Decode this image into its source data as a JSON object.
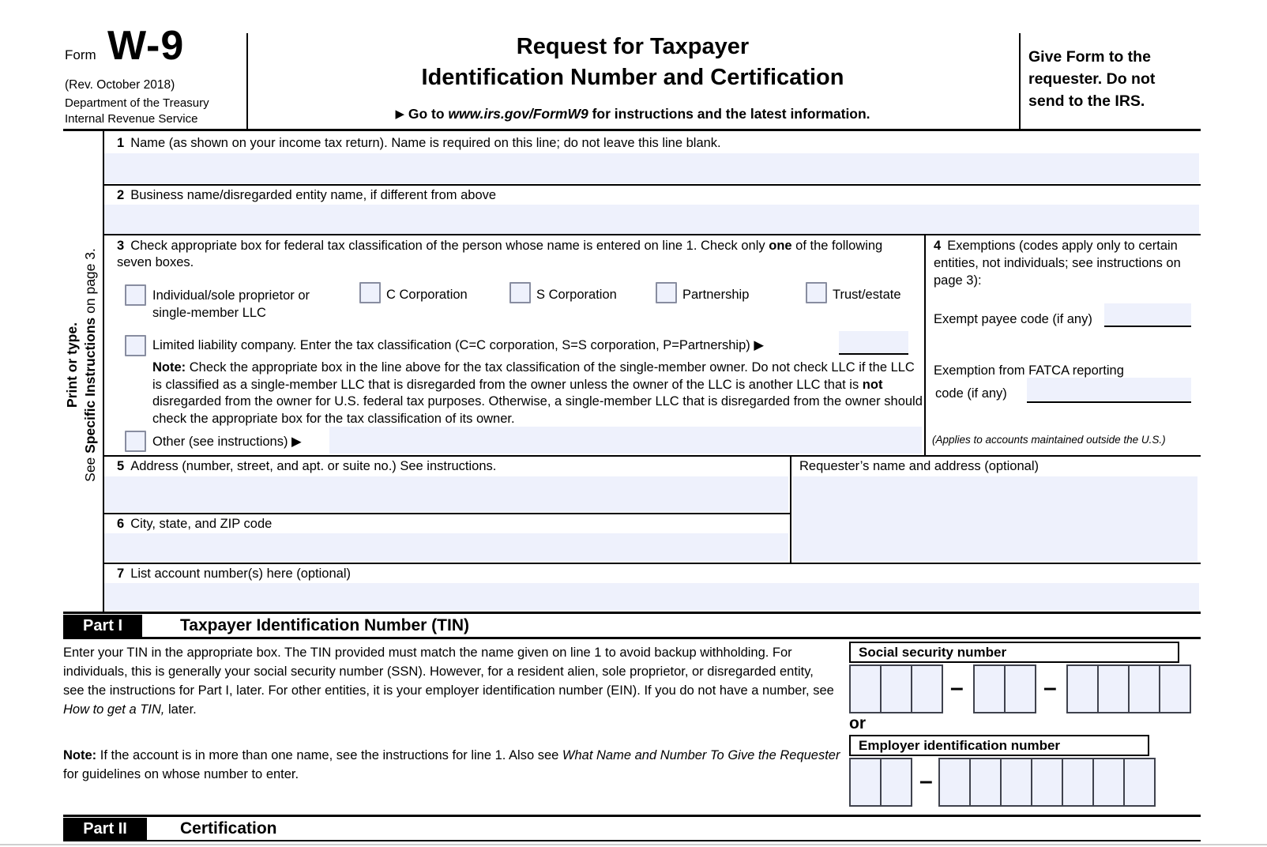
{
  "header": {
    "form_word": "Form",
    "form_number": "W-9",
    "revision": "(Rev. October 2018)",
    "department": "Department of the Treasury",
    "agency": "Internal Revenue Service",
    "title_line1": "Request for Taxpayer",
    "title_line2": "Identification Number and Certification",
    "goto_arrow": "▶",
    "goto_pre": "Go to ",
    "goto_url": "www.irs.gov/FormW9",
    "goto_post": " for instructions and the latest information.",
    "give_form": "Give Form to the requester. Do not send to the IRS."
  },
  "sidebar": {
    "line1": "Print or type.",
    "line2_pre": "See ",
    "line2_bold": "Specific Instructions",
    "line2_post": " on page 3."
  },
  "lines": {
    "l1_num": "1",
    "l1_label": "Name (as shown on your income tax return). Name is required on this line; do not leave this line blank.",
    "l2_num": "2",
    "l2_label": "Business name/disregarded entity name, if different from above",
    "l3_num": "3",
    "l3_pre": "Check appropriate box for federal tax classification of the person whose name is entered on line 1. Check only ",
    "l3_bold": "one",
    "l3_post": " of the following seven boxes.",
    "l4_num": "4",
    "l4_label": "Exemptions (codes apply only to certain entities, not individuals; see instructions on page 3):",
    "exempt_payee_label": "Exempt payee code (if any)",
    "fatca_line1": "Exemption from FATCA reporting",
    "fatca_line2": "code (if any)",
    "applies_note": "(Applies to accounts maintained outside the U.S.)",
    "l5_num": "5",
    "l5_label": "Address (number, street, and apt. or suite no.) See instructions.",
    "requester_label": "Requester’s name and address (optional)",
    "l6_num": "6",
    "l6_label": "City, state, and ZIP code",
    "l7_num": "7",
    "l7_label": "List account number(s) here (optional)"
  },
  "classification": {
    "checkboxes": [
      {
        "label": "Individual/sole proprietor or single-member LLC"
      },
      {
        "label": "C Corporation"
      },
      {
        "label": "S Corporation"
      },
      {
        "label": "Partnership"
      },
      {
        "label": "Trust/estate"
      }
    ],
    "llc_label": "Limited liability company. Enter the tax classification (C=C corporation, S=S corporation, P=Partnership) ▶",
    "note_bold": "Note:",
    "note_p1": " Check the appropriate box in the line above for the tax classification of the single-member owner.  Do not check LLC if the LLC is classified as a single-member LLC that is disregarded from the owner unless the owner of the LLC is another LLC that is ",
    "note_b2": "not",
    "note_p2": " disregarded from the owner for U.S. federal tax purposes. Otherwise, a single-member LLC that is disregarded from the owner should check the appropriate box for the tax classification of its owner.",
    "other_label": "Other (see instructions) ▶"
  },
  "part1": {
    "part_label": "Part I",
    "title": "Taxpayer Identification Number (TIN)",
    "p1_pre": "Enter your TIN in the appropriate box. The TIN provided must match the name given on line 1 to avoid backup withholding. For individuals, this is generally your social security number (SSN). However, for a resident alien, sole proprietor, or disregarded entity, see the instructions for Part I, later. For other entities, it is your employer identification number (EIN). If you do not have a number, see ",
    "p1_italic": "How to get a TIN,",
    "p1_post": " later.",
    "note_bold": "Note:",
    "note_pre": " If the account is in more than one name, see the instructions for line 1. Also see ",
    "note_italic": "What Name and Number To Give the Requester",
    "note_post": " for guidelines on whose number to enter.",
    "ssn_label": "Social security number",
    "or_label": "or",
    "ein_label": "Employer identification number",
    "ssn_groups": [
      3,
      2,
      4
    ],
    "ein_groups": [
      2,
      7
    ],
    "dash": "–"
  },
  "part2": {
    "part_label": "Part II",
    "title": "Certification"
  },
  "colors": {
    "field_fill": "#eef1fc",
    "checkbox_border": "#888da0",
    "cell_border": "#3f424d",
    "band_black": "#000000"
  }
}
